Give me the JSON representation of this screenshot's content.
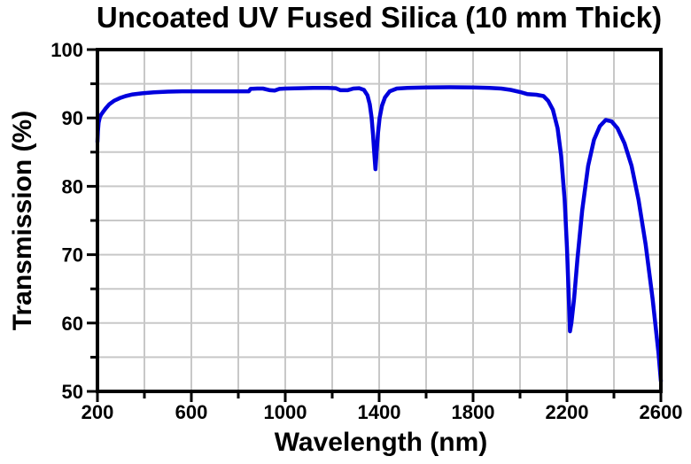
{
  "page": {
    "background": "#ffffff"
  },
  "chart_data": {
    "type": "line",
    "title": "Uncoated UV Fused Silica (10 mm Thick)",
    "xlabel": "Wavelength (nm)",
    "ylabel": "Transmission (%)",
    "xlim": [
      200,
      2600
    ],
    "ylim": [
      50,
      100
    ],
    "x_major_ticks": [
      200,
      600,
      1000,
      1400,
      1800,
      2200,
      2600
    ],
    "x_minor_ticks": [
      400,
      800,
      1200,
      1600,
      2000,
      2400
    ],
    "y_major_ticks": [
      50,
      60,
      70,
      80,
      90,
      100
    ],
    "y_minor_ticks": [
      55,
      65,
      75,
      85,
      95
    ],
    "grid": true,
    "grid_color": "#c8c8c8",
    "axis_color": "#000000",
    "text_color": "#000000",
    "legend": "none",
    "series": [
      {
        "name": "Transmission",
        "color": "#0000dd",
        "points": [
          [
            200,
            86.5
          ],
          [
            202,
            88.0
          ],
          [
            205,
            89.3
          ],
          [
            210,
            90.1
          ],
          [
            216,
            90.5
          ],
          [
            224,
            90.9
          ],
          [
            235,
            91.4
          ],
          [
            250,
            92.0
          ],
          [
            270,
            92.5
          ],
          [
            295,
            92.9
          ],
          [
            320,
            93.2
          ],
          [
            350,
            93.45
          ],
          [
            390,
            93.6
          ],
          [
            440,
            93.75
          ],
          [
            500,
            93.85
          ],
          [
            560,
            93.9
          ],
          [
            640,
            93.9
          ],
          [
            720,
            93.9
          ],
          [
            800,
            93.9
          ],
          [
            845,
            93.9
          ],
          [
            852,
            94.25
          ],
          [
            880,
            94.3
          ],
          [
            905,
            94.3
          ],
          [
            935,
            94.05
          ],
          [
            955,
            94.0
          ],
          [
            975,
            94.25
          ],
          [
            1000,
            94.3
          ],
          [
            1060,
            94.35
          ],
          [
            1120,
            94.4
          ],
          [
            1180,
            94.4
          ],
          [
            1215,
            94.35
          ],
          [
            1235,
            94.05
          ],
          [
            1265,
            94.05
          ],
          [
            1290,
            94.3
          ],
          [
            1315,
            94.35
          ],
          [
            1335,
            94.1
          ],
          [
            1350,
            93.3
          ],
          [
            1360,
            92.0
          ],
          [
            1368,
            90.0
          ],
          [
            1374,
            87.5
          ],
          [
            1379,
            85.0
          ],
          [
            1384,
            82.5
          ],
          [
            1389,
            85.0
          ],
          [
            1395,
            87.8
          ],
          [
            1402,
            90.0
          ],
          [
            1412,
            91.8
          ],
          [
            1425,
            93.0
          ],
          [
            1445,
            93.9
          ],
          [
            1475,
            94.3
          ],
          [
            1520,
            94.4
          ],
          [
            1600,
            94.45
          ],
          [
            1700,
            94.5
          ],
          [
            1800,
            94.45
          ],
          [
            1870,
            94.4
          ],
          [
            1920,
            94.3
          ],
          [
            1960,
            94.1
          ],
          [
            2000,
            93.8
          ],
          [
            2030,
            93.5
          ],
          [
            2070,
            93.4
          ],
          [
            2100,
            93.2
          ],
          [
            2120,
            92.5
          ],
          [
            2140,
            91.2
          ],
          [
            2160,
            88.5
          ],
          [
            2175,
            84.5
          ],
          [
            2190,
            78.0
          ],
          [
            2200,
            71.0
          ],
          [
            2208,
            63.5
          ],
          [
            2213,
            58.8
          ],
          [
            2219,
            60.0
          ],
          [
            2230,
            63.5
          ],
          [
            2245,
            69.5
          ],
          [
            2265,
            76.5
          ],
          [
            2290,
            83.0
          ],
          [
            2315,
            86.8
          ],
          [
            2340,
            88.8
          ],
          [
            2365,
            89.7
          ],
          [
            2390,
            89.5
          ],
          [
            2415,
            88.5
          ],
          [
            2445,
            86.3
          ],
          [
            2475,
            83.0
          ],
          [
            2505,
            78.0
          ],
          [
            2535,
            71.5
          ],
          [
            2565,
            63.5
          ],
          [
            2590,
            55.5
          ],
          [
            2600,
            51.5
          ]
        ]
      }
    ]
  }
}
